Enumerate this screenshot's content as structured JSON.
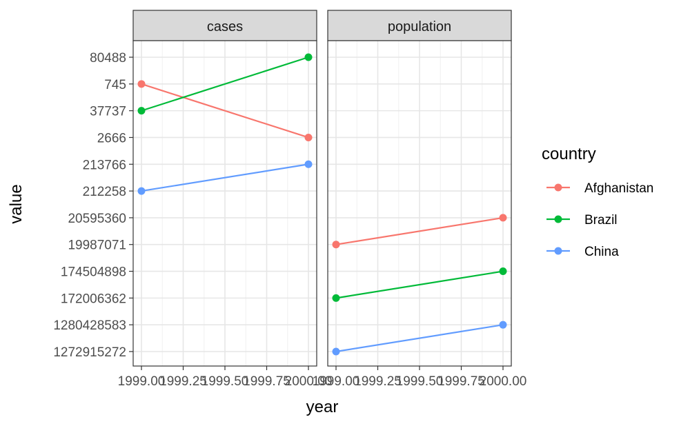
{
  "chart_data": {
    "type": "line",
    "facet_by": "key",
    "facets": [
      {
        "name": "cases",
        "label": "cases"
      },
      {
        "name": "population",
        "label": "population"
      }
    ],
    "x": {
      "label": "year",
      "lim": [
        1999,
        2000
      ],
      "ticks": [
        1999.0,
        1999.25,
        1999.5,
        1999.75,
        2000.0
      ],
      "tick_labels": [
        "1999.00",
        "1999.25",
        "1999.50",
        "1999.75",
        "2000.00"
      ]
    },
    "y": {
      "label": "value",
      "scale": "discrete",
      "categories_top_to_bottom": [
        "80488",
        "745",
        "37737",
        "2666",
        "213766",
        "212258",
        "20595360",
        "19987071",
        "174504898",
        "172006362",
        "1280428583",
        "1272915272"
      ]
    },
    "legend": {
      "title": "country",
      "position": "right",
      "entries": [
        {
          "name": "Afghanistan",
          "color": "#F8766D"
        },
        {
          "name": "Brazil",
          "color": "#00BA38"
        },
        {
          "name": "China",
          "color": "#619CFF"
        }
      ]
    },
    "grid": true,
    "theme": "bw",
    "series": [
      {
        "facet": "cases",
        "name": "Afghanistan",
        "points": [
          {
            "x": 1999,
            "y": "745"
          },
          {
            "x": 2000,
            "y": "2666"
          }
        ]
      },
      {
        "facet": "cases",
        "name": "Brazil",
        "points": [
          {
            "x": 1999,
            "y": "37737"
          },
          {
            "x": 2000,
            "y": "80488"
          }
        ]
      },
      {
        "facet": "cases",
        "name": "China",
        "points": [
          {
            "x": 1999,
            "y": "212258"
          },
          {
            "x": 2000,
            "y": "213766"
          }
        ]
      },
      {
        "facet": "population",
        "name": "Afghanistan",
        "points": [
          {
            "x": 1999,
            "y": "19987071"
          },
          {
            "x": 2000,
            "y": "20595360"
          }
        ]
      },
      {
        "facet": "population",
        "name": "Brazil",
        "points": [
          {
            "x": 1999,
            "y": "172006362"
          },
          {
            "x": 2000,
            "y": "174504898"
          }
        ]
      },
      {
        "facet": "population",
        "name": "China",
        "points": [
          {
            "x": 1999,
            "y": "1272915272"
          },
          {
            "x": 2000,
            "y": "1280428583"
          }
        ]
      }
    ]
  }
}
